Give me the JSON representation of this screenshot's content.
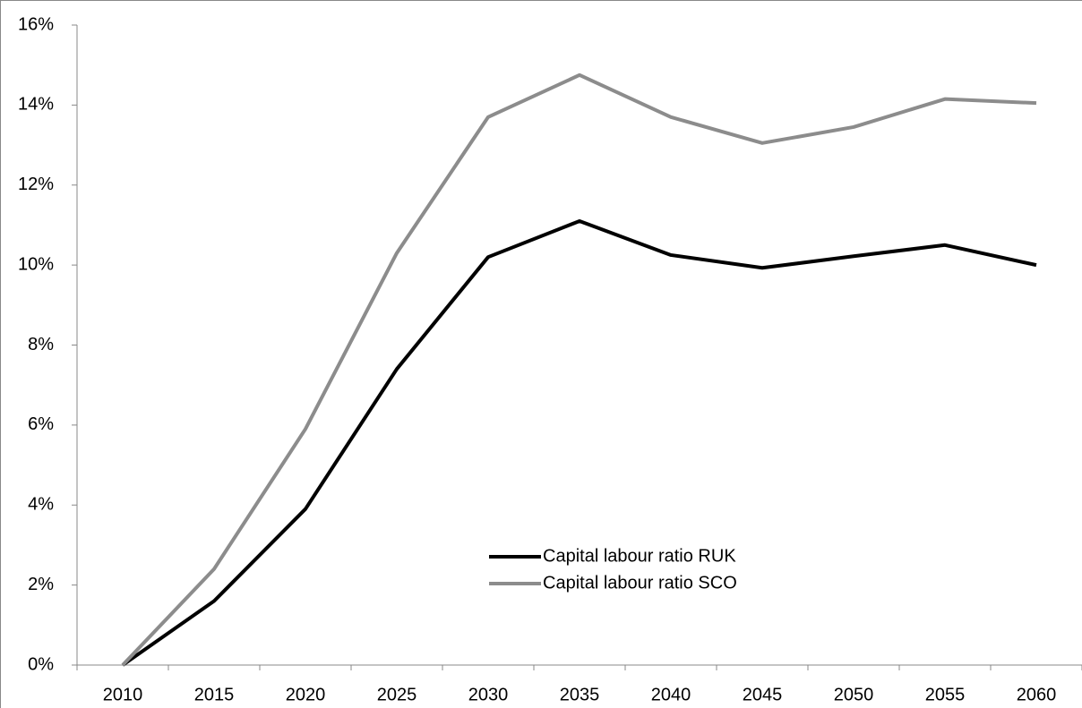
{
  "chart_data": {
    "type": "line",
    "categories": [
      "2010",
      "2015",
      "2020",
      "2025",
      "2030",
      "2035",
      "2040",
      "2045",
      "2050",
      "2055",
      "2060"
    ],
    "series": [
      {
        "name": "Capital labour ratio RUK",
        "color": "#000000",
        "values": [
          0,
          1.6,
          3.9,
          7.4,
          10.2,
          11.1,
          10.25,
          9.93,
          10.22,
          10.5,
          10.0
        ]
      },
      {
        "name": "Capital labour ratio SCO",
        "color": "#8c8c8c",
        "values": [
          0,
          2.4,
          5.9,
          10.3,
          13.7,
          14.75,
          13.7,
          13.05,
          13.45,
          14.15,
          14.05
        ]
      }
    ],
    "ylim": [
      0,
      16
    ],
    "yticks": [
      {
        "value": 0,
        "label": "0%"
      },
      {
        "value": 2,
        "label": "2%"
      },
      {
        "value": 4,
        "label": "4%"
      },
      {
        "value": 6,
        "label": "6%"
      },
      {
        "value": 8,
        "label": "8%"
      },
      {
        "value": 10,
        "label": "10%"
      },
      {
        "value": 12,
        "label": "12%"
      },
      {
        "value": 14,
        "label": "14%"
      },
      {
        "value": 16,
        "label": "16%"
      }
    ],
    "grid": false,
    "legend": "bottom-center"
  }
}
